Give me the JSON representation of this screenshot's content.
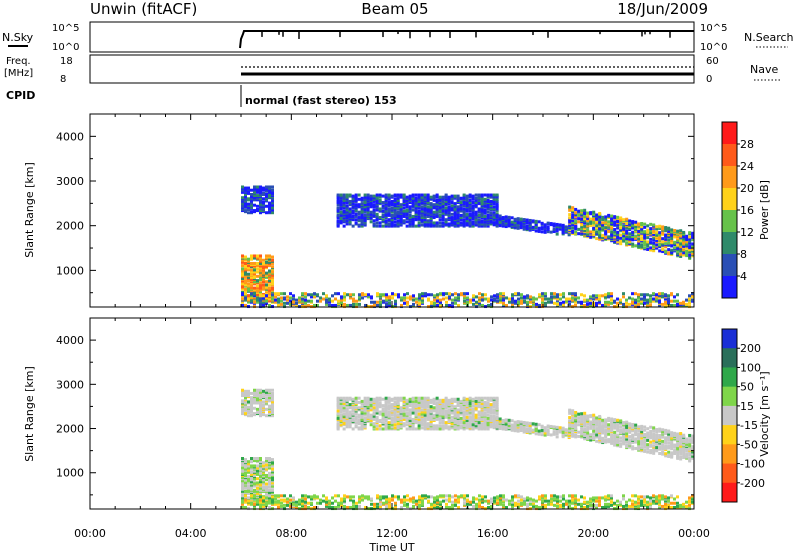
{
  "header": {
    "station": "Unwin (fitACF)",
    "beam": "Beam 05",
    "date": "18/Jun/2009"
  },
  "top_panels": {
    "nsky_label": "N.Sky",
    "nsearch_label": "N.Search",
    "freq_label_1": "Freq.",
    "freq_label_2": "[MHz]",
    "nave_label": "Nave",
    "cpid_label": "CPID",
    "cpid_text": "normal (fast stereo) 153",
    "noise_ticks": [
      "10^5",
      "10^0"
    ],
    "freq_ticks": [
      "18",
      "8"
    ],
    "nave_ticks": [
      "60",
      "0"
    ]
  },
  "chart_data": [
    {
      "type": "heatmap",
      "name": "power",
      "ylabel": "Slant Range [km]",
      "ylim": [
        180,
        4500
      ],
      "yticks": [
        "1000",
        "2000",
        "3000",
        "4000"
      ],
      "colorbar_label": "Power [dB]",
      "colorbar_ticks": [
        "4",
        "8",
        "12",
        "16",
        "20",
        "24",
        "28"
      ],
      "colorbar_colors": [
        "#1a1aff",
        "#2a4fb5",
        "#2f8a6a",
        "#66c24a",
        "#ffd21a",
        "#ff9a1a",
        "#ff5a1a",
        "#ff1a1a"
      ],
      "regions": [
        {
          "t0": 6.0,
          "t1": 7.3,
          "r0": 300,
          "r1": 1350,
          "level": "high"
        },
        {
          "t0": 6.0,
          "t1": 7.2,
          "r0": 2300,
          "r1": 2900,
          "level": "low"
        },
        {
          "t0": 9.8,
          "t1": 16.2,
          "r0": 2000,
          "r1": 2700,
          "level": "low"
        },
        {
          "t0": 16.0,
          "t1": 19.0,
          "r0": 1900,
          "r1": 2300,
          "level": "low"
        },
        {
          "t0": 19.0,
          "t1": 24.0,
          "r0": 1200,
          "r1": 2400,
          "level": "mixed"
        },
        {
          "t0": 6.0,
          "t1": 24.0,
          "r0": 200,
          "r1": 500,
          "level": "ground"
        }
      ]
    },
    {
      "type": "heatmap",
      "name": "velocity",
      "ylabel": "Slant Range [km]",
      "xlabel": "Time UT",
      "xlim": [
        0,
        24
      ],
      "xticks": [
        "00:00",
        "04:00",
        "08:00",
        "12:00",
        "16:00",
        "20:00",
        "00:00"
      ],
      "ylim": [
        180,
        4500
      ],
      "yticks": [
        "1000",
        "2000",
        "3000",
        "4000"
      ],
      "colorbar_label": "Velocity [m s⁻¹]",
      "colorbar_ticks": [
        "200",
        "100",
        "50",
        "15",
        "-15",
        "-50",
        "-100",
        "-200"
      ],
      "colorbar_colors": [
        "#1a2fd6",
        "#2a6f5a",
        "#2fa84a",
        "#7fd64a",
        "#c8c8c8",
        "#ffd21a",
        "#ff9a1a",
        "#ff5a1a",
        "#ff1a1a"
      ]
    }
  ]
}
